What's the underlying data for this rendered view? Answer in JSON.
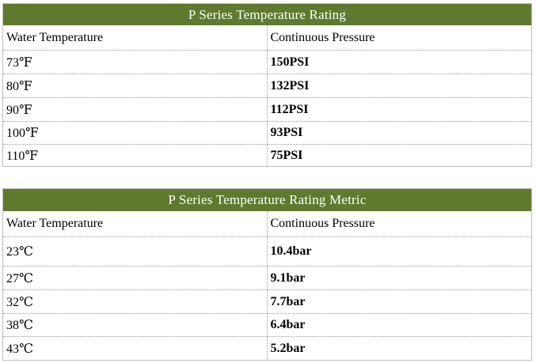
{
  "imperial_table": {
    "title": "P Series Temperature Rating",
    "header": {
      "col1": "Water Temperature",
      "col2": "Continuous Pressure"
    },
    "rows": [
      {
        "temp": "73℉",
        "pressure": "150PSI"
      },
      {
        "temp": "80℉",
        "pressure": "132PSI"
      },
      {
        "temp": "90℉",
        "pressure": "112PSI"
      },
      {
        "temp": "100℉",
        "pressure": "93PSI"
      },
      {
        "temp": "110℉",
        "pressure": "75PSI"
      }
    ]
  },
  "metric_table": {
    "title": "P Series Temperature Rating  Metric",
    "header": {
      "col1": "Water Temperature",
      "col2": "Continuous Pressure"
    },
    "rows": [
      {
        "temp": "23℃",
        "pressure": "10.4bar"
      },
      {
        "temp": "27℃",
        "pressure": "9.1bar"
      },
      {
        "temp": "32℃",
        "pressure": "7.7bar"
      },
      {
        "temp": "38℃",
        "pressure": "6.4bar"
      },
      {
        "temp": "43℃",
        "pressure": "5.2bar"
      }
    ]
  },
  "colors": {
    "header_bg": "#5f7a2e",
    "header_text": "#ffffff",
    "border": "#9a9a9a"
  }
}
